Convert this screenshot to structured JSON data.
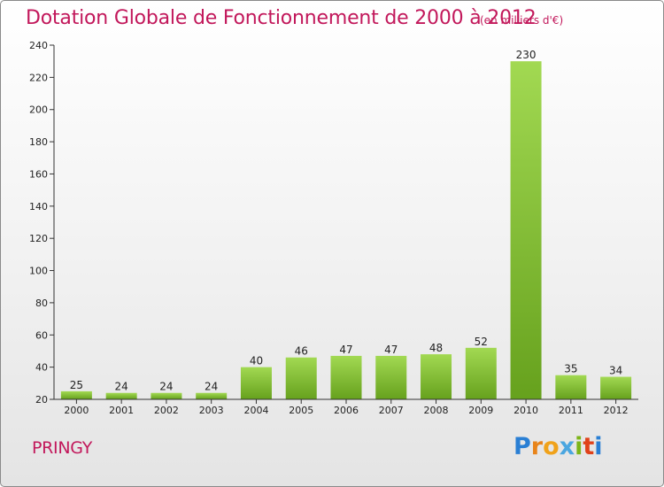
{
  "header": {
    "title": "Dotation Globale de Fonctionnement de 2000 à 2012",
    "unit": "(en milliers d'€)"
  },
  "footer": {
    "commune": "PRINGY",
    "logo_text": "Proxiti"
  },
  "colors": {
    "title": "#c2185b",
    "bar_light": "#9bd44a",
    "bar_dark": "#6aa821",
    "axis": "#333333"
  },
  "chart_data": {
    "type": "bar",
    "title": "Dotation Globale de Fonctionnement de 2000 à 2012",
    "subtitle": "(en milliers d'€)",
    "xlabel": "",
    "ylabel": "",
    "categories": [
      "2000",
      "2001",
      "2002",
      "2003",
      "2004",
      "2005",
      "2006",
      "2007",
      "2008",
      "2009",
      "2010",
      "2011",
      "2012"
    ],
    "values": [
      25,
      24,
      24,
      24,
      40,
      46,
      47,
      47,
      48,
      52,
      230,
      35,
      34
    ],
    "ylim": [
      20,
      240
    ],
    "yticks": [
      20,
      40,
      60,
      80,
      100,
      120,
      140,
      160,
      180,
      200,
      220,
      240
    ],
    "grid": false,
    "data_labels": true
  }
}
